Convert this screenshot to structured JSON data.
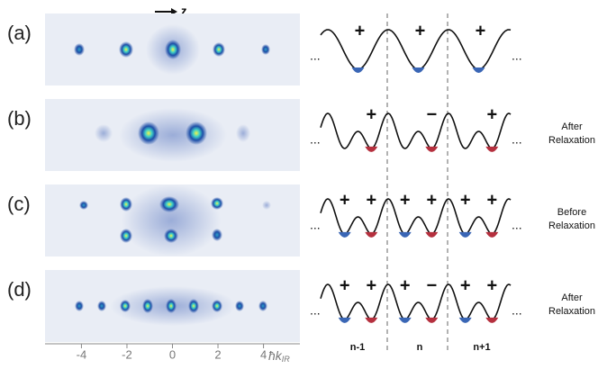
{
  "panels": [
    {
      "label": "(a)",
      "signs": [
        "+",
        "+",
        "+"
      ],
      "dots": [
        "#3a66b5",
        "#3a66b5",
        "#3a66b5"
      ],
      "note": null
    },
    {
      "label": "(b)",
      "signs": [
        null,
        "+",
        null,
        "−",
        null,
        "+"
      ],
      "dots": [
        null,
        "#b5303e",
        null,
        "#b5303e",
        null,
        "#b5303e"
      ],
      "note": [
        "After",
        "Relaxation"
      ]
    },
    {
      "label": "(c)",
      "signs": [
        "+",
        "+",
        "+",
        "+",
        "+",
        "+"
      ],
      "dots": [
        "#3a66b5",
        "#b5303e",
        "#3a66b5",
        "#b5303e",
        "#3a66b5",
        "#b5303e"
      ],
      "note": [
        "Before",
        "Relaxation"
      ]
    },
    {
      "label": "(d)",
      "signs": [
        "+",
        "+",
        "+",
        "−",
        "+",
        "+"
      ],
      "dots": [
        "#3a66b5",
        "#b5303e",
        "#3a66b5",
        "#b5303e",
        "#3a66b5",
        "#b5303e"
      ],
      "note": [
        "After",
        "Relaxation"
      ]
    }
  ],
  "ellipsis": "...",
  "direction_label": "z",
  "axis": {
    "xlim": [
      -5.6,
      5.6
    ],
    "ticks": [
      -4,
      -2,
      0,
      2,
      4
    ],
    "label": "ħk",
    "label_sub": "IR"
  },
  "sites": [
    "n-1",
    "n",
    "n+1"
  ]
}
